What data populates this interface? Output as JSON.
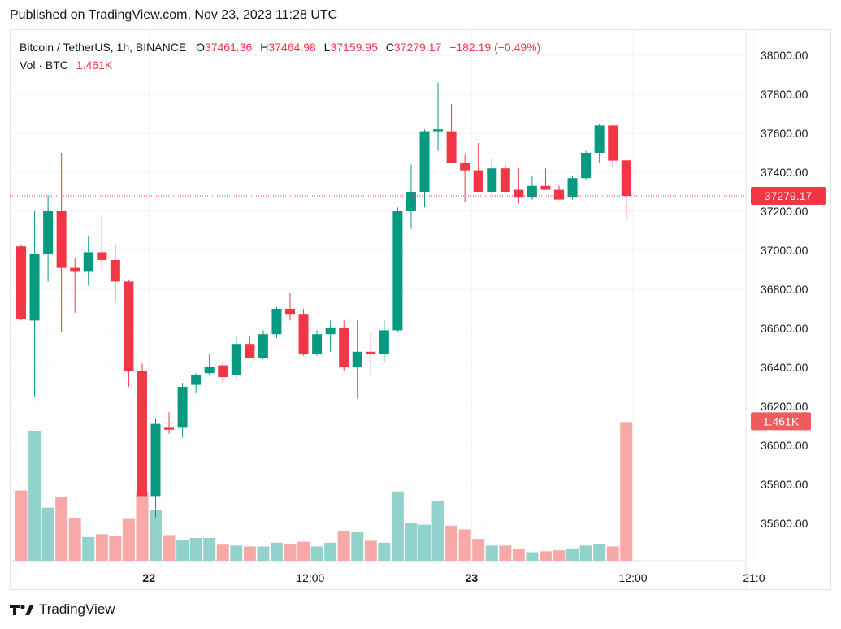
{
  "header": {
    "published": "Published on TradingView.com, Nov 23, 2023 11:28 UTC"
  },
  "legend": {
    "symbol": "Bitcoin / TetherUS, 1h, BINANCE",
    "o_label": "O",
    "o_value": "37461.36",
    "h_label": "H",
    "h_value": "37464.98",
    "l_label": "L",
    "l_value": "37159.95",
    "c_label": "C",
    "c_value": "37279.17",
    "change": "−182.19 (−0.49%)",
    "vol_label": "Vol · BTC",
    "vol_value": "1.461K"
  },
  "price_tag": "37279.17",
  "vol_tag": "1.461K",
  "footer": {
    "brand": "TradingView"
  },
  "colors": {
    "up": "#089981",
    "down": "#f23645",
    "up_vol": "#92d2cc",
    "down_vol": "#f7a9a7",
    "grid": "#f0f3fa"
  },
  "chart_data": {
    "type": "candlestick",
    "y_axis": {
      "min": 35500,
      "max": 38050,
      "ticks": [
        "35600.00",
        "35800.00",
        "36000.00",
        "36200.00",
        "36400.00",
        "36600.00",
        "36800.00",
        "37000.00",
        "37200.00",
        "37400.00",
        "37600.00",
        "37800.00",
        "38000.00"
      ]
    },
    "x_axis": {
      "labels": [
        {
          "text": "22",
          "index": 9.5
        },
        {
          "text": "12:00",
          "index": 21.5
        },
        {
          "text": "23",
          "index": 33.5
        },
        {
          "text": "12:00",
          "index": 45.5
        },
        {
          "text": "21:0",
          "index": 54.5
        }
      ]
    },
    "last_price": 37279.17,
    "candles": [
      {
        "o": 37020,
        "h": 37030,
        "l": 36640,
        "c": 36650,
        "v": 0.74
      },
      {
        "o": 36640,
        "h": 37200,
        "l": 36250,
        "c": 36980,
        "v": 1.37
      },
      {
        "o": 36980,
        "h": 37280,
        "l": 36840,
        "c": 37200,
        "v": 0.56
      },
      {
        "o": 37200,
        "h": 37500,
        "l": 36580,
        "c": 36910,
        "v": 0.67
      },
      {
        "o": 36910,
        "h": 36960,
        "l": 36680,
        "c": 36890,
        "v": 0.45
      },
      {
        "o": 36890,
        "h": 37070,
        "l": 36820,
        "c": 36990,
        "v": 0.25
      },
      {
        "o": 36990,
        "h": 37180,
        "l": 36900,
        "c": 36950,
        "v": 0.28
      },
      {
        "o": 36950,
        "h": 37030,
        "l": 36740,
        "c": 36840,
        "v": 0.26
      },
      {
        "o": 36840,
        "h": 36850,
        "l": 36300,
        "c": 36380,
        "v": 0.44
      },
      {
        "o": 36380,
        "h": 36420,
        "l": 35740,
        "c": 35740,
        "v": 0.72
      },
      {
        "o": 35740,
        "h": 36140,
        "l": 35630,
        "c": 36110,
        "v": 0.54
      },
      {
        "o": 36090,
        "h": 36170,
        "l": 36060,
        "c": 36080,
        "v": 0.27
      },
      {
        "o": 36090,
        "h": 36320,
        "l": 36040,
        "c": 36300,
        "v": 0.22
      },
      {
        "o": 36310,
        "h": 36370,
        "l": 36270,
        "c": 36360,
        "v": 0.24
      },
      {
        "o": 36370,
        "h": 36470,
        "l": 36360,
        "c": 36400,
        "v": 0.24
      },
      {
        "o": 36410,
        "h": 36430,
        "l": 36320,
        "c": 36350,
        "v": 0.17
      },
      {
        "o": 36360,
        "h": 36560,
        "l": 36340,
        "c": 36520,
        "v": 0.16
      },
      {
        "o": 36520,
        "h": 36560,
        "l": 36450,
        "c": 36450,
        "v": 0.15
      },
      {
        "o": 36450,
        "h": 36590,
        "l": 36440,
        "c": 36570,
        "v": 0.15
      },
      {
        "o": 36570,
        "h": 36710,
        "l": 36550,
        "c": 36700,
        "v": 0.19
      },
      {
        "o": 36700,
        "h": 36780,
        "l": 36640,
        "c": 36670,
        "v": 0.18
      },
      {
        "o": 36670,
        "h": 36700,
        "l": 36460,
        "c": 36470,
        "v": 0.2
      },
      {
        "o": 36470,
        "h": 36590,
        "l": 36460,
        "c": 36570,
        "v": 0.15
      },
      {
        "o": 36570,
        "h": 36640,
        "l": 36480,
        "c": 36600,
        "v": 0.19
      },
      {
        "o": 36600,
        "h": 36640,
        "l": 36380,
        "c": 36400,
        "v": 0.31
      },
      {
        "o": 36400,
        "h": 36640,
        "l": 36240,
        "c": 36480,
        "v": 0.3
      },
      {
        "o": 36480,
        "h": 36580,
        "l": 36360,
        "c": 36470,
        "v": 0.21
      },
      {
        "o": 36470,
        "h": 36640,
        "l": 36430,
        "c": 36590,
        "v": 0.19
      },
      {
        "o": 36590,
        "h": 37220,
        "l": 36580,
        "c": 37200,
        "v": 0.73
      },
      {
        "o": 37200,
        "h": 37440,
        "l": 37110,
        "c": 37300,
        "v": 0.4
      },
      {
        "o": 37300,
        "h": 37620,
        "l": 37220,
        "c": 37610,
        "v": 0.38
      },
      {
        "o": 37610,
        "h": 37860,
        "l": 37510,
        "c": 37620,
        "v": 0.63
      },
      {
        "o": 37610,
        "h": 37750,
        "l": 37460,
        "c": 37450,
        "v": 0.37
      },
      {
        "o": 37450,
        "h": 37490,
        "l": 37250,
        "c": 37410,
        "v": 0.33
      },
      {
        "o": 37410,
        "h": 37550,
        "l": 37300,
        "c": 37300,
        "v": 0.23
      },
      {
        "o": 37300,
        "h": 37470,
        "l": 37290,
        "c": 37420,
        "v": 0.16
      },
      {
        "o": 37420,
        "h": 37450,
        "l": 37290,
        "c": 37300,
        "v": 0.16
      },
      {
        "o": 37310,
        "h": 37420,
        "l": 37240,
        "c": 37270,
        "v": 0.12
      },
      {
        "o": 37270,
        "h": 37380,
        "l": 37260,
        "c": 37330,
        "v": 0.09
      },
      {
        "o": 37330,
        "h": 37420,
        "l": 37310,
        "c": 37310,
        "v": 0.1
      },
      {
        "o": 37310,
        "h": 37330,
        "l": 37260,
        "c": 37260,
        "v": 0.11
      },
      {
        "o": 37270,
        "h": 37380,
        "l": 37260,
        "c": 37370,
        "v": 0.13
      },
      {
        "o": 37370,
        "h": 37510,
        "l": 37360,
        "c": 37500,
        "v": 0.16
      },
      {
        "o": 37500,
        "h": 37650,
        "l": 37450,
        "c": 37640,
        "v": 0.18
      },
      {
        "o": 37640,
        "h": 37640,
        "l": 37430,
        "c": 37460,
        "v": 0.15
      },
      {
        "o": 37461.36,
        "h": 37464.98,
        "l": 37159.95,
        "c": 37279.17,
        "v": 1.461
      }
    ]
  }
}
